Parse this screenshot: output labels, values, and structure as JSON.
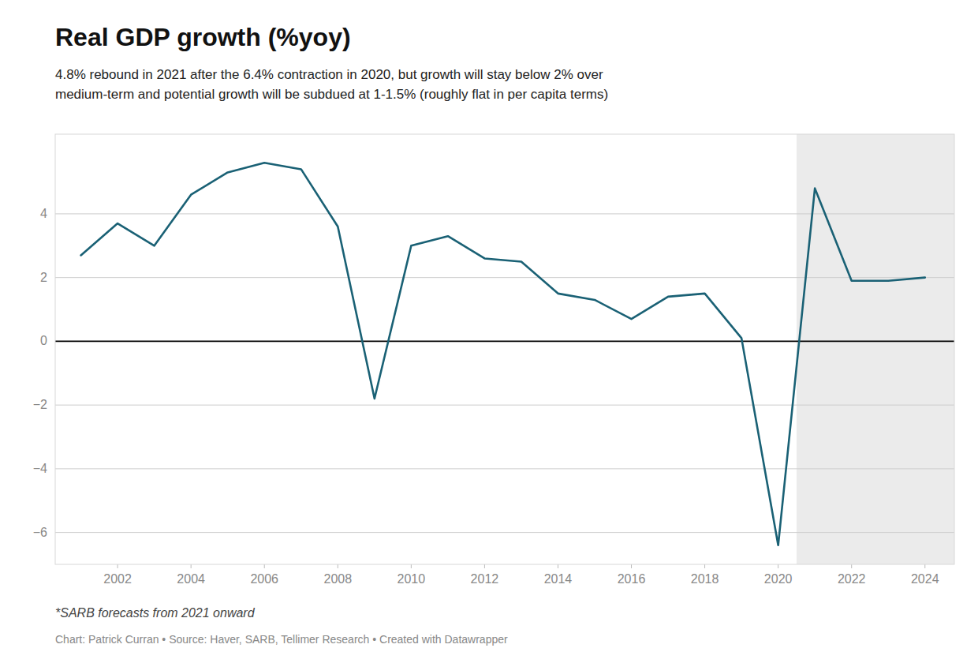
{
  "chart_data": {
    "type": "line",
    "title": "Real GDP growth (%yoy)",
    "subtitle": "4.8% rebound in 2021 after the 6.4% contraction in 2020, but growth will stay below 2% over\nmedium-term and potential growth will be subdued at 1-1.5% (roughly flat in per capita terms)",
    "footnote": "*SARB forecasts from 2021 onward",
    "source": "Chart: Patrick Curran • Source: Haver, SARB, Tellimer Research • Created with Datawrapper",
    "x": [
      2001,
      2002,
      2003,
      2004,
      2005,
      2006,
      2007,
      2008,
      2009,
      2010,
      2011,
      2012,
      2013,
      2014,
      2015,
      2016,
      2017,
      2018,
      2019,
      2020,
      2021,
      2022,
      2023,
      2024
    ],
    "values": [
      2.7,
      3.7,
      3.0,
      4.6,
      5.3,
      5.6,
      5.4,
      3.6,
      -1.8,
      3.0,
      3.3,
      2.6,
      2.5,
      1.5,
      1.3,
      0.7,
      1.4,
      1.5,
      0.1,
      -6.4,
      4.8,
      1.9,
      1.9,
      2.0
    ],
    "color": "#1a6175",
    "forecast_start": 2020.5,
    "xlim": [
      2000.3,
      2024.8
    ],
    "xticks": [
      2002,
      2004,
      2006,
      2008,
      2010,
      2012,
      2014,
      2016,
      2018,
      2020,
      2022,
      2024
    ],
    "ylim": [
      -7.0,
      6.5
    ],
    "yticks": [
      {
        "value": -6,
        "label": "−6"
      },
      {
        "value": -4,
        "label": "−4"
      },
      {
        "value": -2,
        "label": "−2"
      },
      0,
      2,
      4
    ],
    "grid": true
  }
}
